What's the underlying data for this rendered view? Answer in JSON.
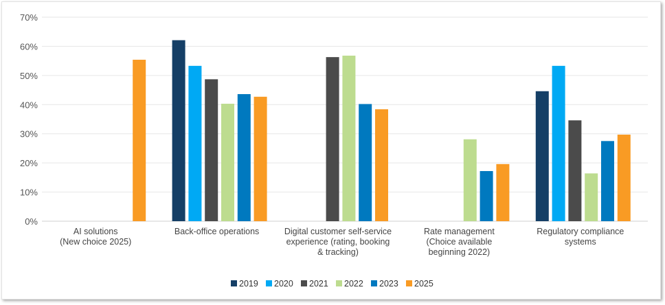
{
  "chart_data": {
    "type": "bar",
    "title": "",
    "xlabel": "",
    "ylabel": "",
    "ylim": [
      0,
      70
    ],
    "yticks": [
      "0%",
      "10%",
      "20%",
      "30%",
      "40%",
      "50%",
      "60%",
      "70%"
    ],
    "grid": true,
    "legend_position": "bottom",
    "categories": [
      [
        "AI solutions",
        "(New choice 2025)"
      ],
      [
        "Back-office operations"
      ],
      [
        "Digital customer self-service",
        "experience (rating, booking",
        "& tracking)"
      ],
      [
        "Rate management",
        "(Choice available",
        "beginning 2022)"
      ],
      [
        "Regulatory compliance",
        "systems"
      ]
    ],
    "series": [
      {
        "name": "2019",
        "color": "#153f66",
        "values": [
          null,
          62.1,
          null,
          null,
          44.6
        ]
      },
      {
        "name": "2020",
        "color": "#00a9f4",
        "values": [
          null,
          53.3,
          null,
          null,
          53.3
        ]
      },
      {
        "name": "2021",
        "color": "#4b4b4b",
        "values": [
          null,
          48.7,
          56.3,
          null,
          34.6
        ]
      },
      {
        "name": "2022",
        "color": "#bddc8f",
        "values": [
          null,
          40.3,
          56.8,
          28.1,
          16.4
        ]
      },
      {
        "name": "2023",
        "color": "#0079bf",
        "values": [
          null,
          43.6,
          40.2,
          17.2,
          27.5
        ]
      },
      {
        "name": "2025",
        "color": "#f99b24",
        "values": [
          55.4,
          42.7,
          38.4,
          19.6,
          29.7
        ]
      }
    ]
  }
}
